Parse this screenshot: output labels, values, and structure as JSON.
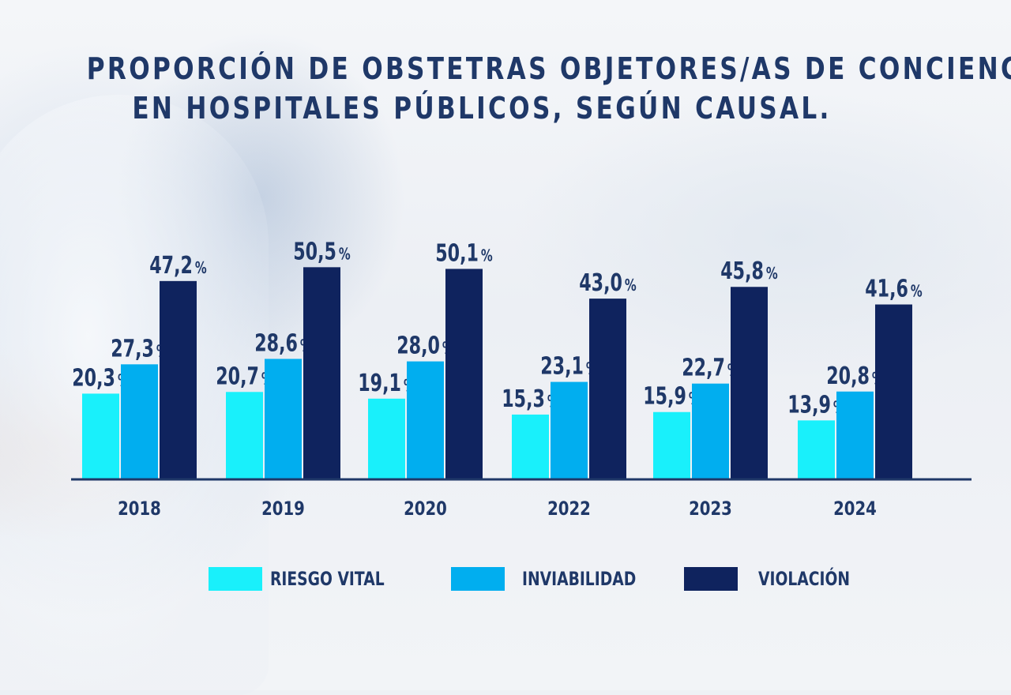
{
  "title_line1": "PROPORCIÓN DE OBSTETRAS OBJETORES/AS DE CONCIENCIA",
  "title_line2": "EN HOSPITALES PÚBLICOS, SEGÚN CAUSAL.",
  "colors": {
    "riesgo_vital": "#19f0fb",
    "inviabilidad": "#01aeef",
    "violacion": "#0f235e",
    "text": "#1f3868"
  },
  "chart_data": {
    "type": "bar",
    "title": "PROPORCIÓN DE OBSTETRAS OBJETORES/AS DE CONCIENCIA EN HOSPITALES PÚBLICOS, SEGÚN CAUSAL.",
    "categories": [
      "2018",
      "2019",
      "2020",
      "2022",
      "2023",
      "2024"
    ],
    "series": [
      {
        "name": "RIESGO VITAL",
        "values": [
          20.3,
          20.7,
          19.1,
          15.3,
          15.9,
          13.9
        ],
        "labels": [
          "20,3",
          "20,7",
          "19,1",
          "15,3",
          "15,9",
          "13,9"
        ]
      },
      {
        "name": "INVIABILIDAD",
        "values": [
          27.3,
          28.6,
          28.0,
          23.1,
          22.7,
          20.8
        ],
        "labels": [
          "27,3",
          "28,6",
          "28,0",
          "23,1",
          "22,7",
          "20,8"
        ]
      },
      {
        "name": "VIOLACIÓN",
        "values": [
          47.2,
          50.5,
          50.1,
          43.0,
          45.8,
          41.6
        ],
        "labels": [
          "47,2",
          "50,5",
          "50,1",
          "43,0",
          "45,8",
          "41,6"
        ]
      }
    ],
    "unit": "%",
    "xlabel": "",
    "ylabel": "",
    "legend_position": "bottom",
    "grid": false
  }
}
